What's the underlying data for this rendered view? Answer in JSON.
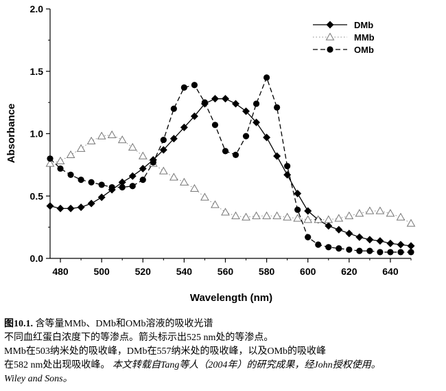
{
  "chart_data": {
    "type": "line",
    "title": "",
    "xlabel": "Wavelength (nm)",
    "ylabel": "Absorbance",
    "xlim": [
      475,
      650
    ],
    "ylim": [
      0.0,
      2.0
    ],
    "xticks": [
      480,
      500,
      520,
      540,
      560,
      580,
      600,
      620,
      640
    ],
    "yticks": [
      0.0,
      0.5,
      1.0,
      1.5,
      2.0
    ],
    "xtick_labels": [
      "480",
      "500",
      "520",
      "540",
      "560",
      "580",
      "600",
      "620",
      "640"
    ],
    "ytick_labels": [
      "0.0",
      "0.5",
      "1.0",
      "1.5",
      "2.0"
    ],
    "legend_position": "top-right",
    "series": [
      {
        "name": "DMb",
        "style": "solid",
        "marker": "diamond",
        "x": [
          475,
          480,
          485,
          490,
          495,
          500,
          505,
          510,
          515,
          520,
          525,
          530,
          535,
          540,
          545,
          550,
          555,
          560,
          565,
          570,
          575,
          580,
          585,
          590,
          595,
          600,
          605,
          610,
          615,
          620,
          625,
          630,
          635,
          640,
          645,
          650
        ],
        "y": [
          0.42,
          0.4,
          0.4,
          0.41,
          0.44,
          0.49,
          0.55,
          0.61,
          0.66,
          0.72,
          0.79,
          0.87,
          0.96,
          1.05,
          1.14,
          1.24,
          1.28,
          1.28,
          1.24,
          1.18,
          1.09,
          0.97,
          0.82,
          0.67,
          0.52,
          0.38,
          0.31,
          0.26,
          0.23,
          0.2,
          0.17,
          0.15,
          0.14,
          0.12,
          0.11,
          0.1
        ]
      },
      {
        "name": "MMb",
        "style": "dotted",
        "marker": "triangle-open",
        "x": [
          475,
          480,
          485,
          490,
          495,
          500,
          505,
          510,
          515,
          520,
          525,
          530,
          535,
          540,
          545,
          550,
          555,
          560,
          565,
          570,
          575,
          580,
          585,
          590,
          595,
          600,
          605,
          610,
          615,
          620,
          625,
          630,
          635,
          640,
          645,
          650
        ],
        "y": [
          0.76,
          0.78,
          0.83,
          0.88,
          0.94,
          0.98,
          0.99,
          0.95,
          0.89,
          0.82,
          0.76,
          0.7,
          0.65,
          0.61,
          0.56,
          0.49,
          0.43,
          0.37,
          0.34,
          0.33,
          0.34,
          0.34,
          0.34,
          0.33,
          0.32,
          0.31,
          0.31,
          0.31,
          0.32,
          0.34,
          0.36,
          0.38,
          0.38,
          0.36,
          0.33,
          0.28
        ]
      },
      {
        "name": "OMb",
        "style": "dashed",
        "marker": "circle",
        "x": [
          475,
          480,
          485,
          490,
          495,
          500,
          505,
          510,
          515,
          520,
          525,
          530,
          535,
          540,
          545,
          550,
          555,
          560,
          565,
          570,
          575,
          580,
          585,
          590,
          595,
          600,
          605,
          610,
          615,
          620,
          625,
          630,
          635,
          640,
          645,
          650
        ],
        "y": [
          0.8,
          0.72,
          0.67,
          0.63,
          0.61,
          0.59,
          0.57,
          0.57,
          0.58,
          0.63,
          0.77,
          0.95,
          1.2,
          1.37,
          1.39,
          1.25,
          1.07,
          0.86,
          0.83,
          0.98,
          1.24,
          1.45,
          1.21,
          0.74,
          0.39,
          0.17,
          0.11,
          0.09,
          0.08,
          0.07,
          0.06,
          0.06,
          0.05,
          0.05,
          0.05,
          0.05
        ]
      }
    ]
  },
  "caption": {
    "line1_figure": "图10.1.",
    "line1_text": " 含等量MMb、DMb和OMb溶液的吸收光谱",
    "line2": "不同血红蛋白浓度下的等渗点。箭头标示出525 nm处的等渗点。",
    "line3": "MMb在503纳米处的吸收峰，DMb在557纳米处的吸收峰，以及OMb的吸收峰",
    "line4_text": "在582 nm处出现吸收峰。",
    "line4_italic": " 本文转载自Tang等人（2004年）的研究成果，经John授权使用。",
    "line5_italic": "Wiley and Sons。"
  },
  "colors": {
    "ink": "#000000",
    "background": "#ffffff"
  }
}
